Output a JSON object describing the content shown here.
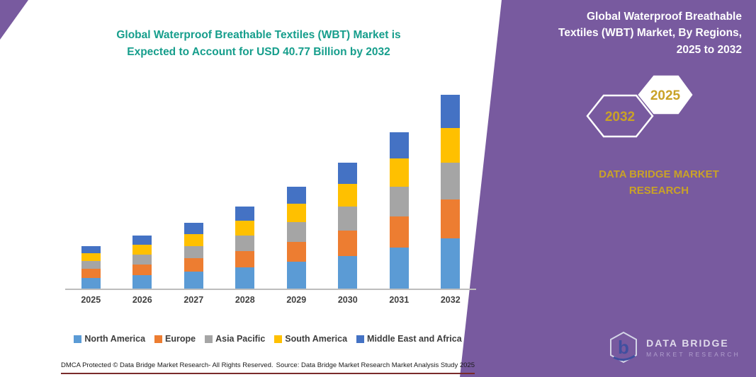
{
  "title": {
    "line1": "Global Waterproof Breathable Textiles (WBT) Market is",
    "line2": "Expected to Account for USD 40.77 Billion by 2032"
  },
  "right_panel": {
    "heading_line1": "Global Waterproof Breathable",
    "heading_line2": "Textiles (WBT) Market, By Regions,",
    "heading_line3": "2025 to 2032",
    "hexagon_left_year": "2032",
    "hexagon_right_year": "2025",
    "brand_line1": "DATA BRIDGE MARKET",
    "brand_line2": "RESEARCH",
    "logo_letter": "b",
    "logo_text1": "DATA BRIDGE",
    "logo_text2": "MARKET RESEARCH",
    "colors": {
      "panel": "#785a9f",
      "gold": "#c9a227"
    }
  },
  "footer": {
    "dmca": "DMCA Protected © Data Bridge Market Research-  All Rights Reserved.",
    "source": "Source: Data Bridge Market Research  Market Analysis Study 2025"
  },
  "chart_data": {
    "type": "bar",
    "stacked": true,
    "title": "Global Waterproof Breathable Textiles (WBT) Market is Expected to Account for USD 40.77 Billion by 2032",
    "unit": "USD Billion",
    "categories": [
      "2025",
      "2026",
      "2027",
      "2028",
      "2029",
      "2030",
      "2031",
      "2032"
    ],
    "series": [
      {
        "name": "North America",
        "color": "#5B9BD5",
        "values": [
          2.3,
          2.9,
          3.6,
          4.5,
          5.6,
          6.9,
          8.6,
          10.6
        ]
      },
      {
        "name": "Europe",
        "color": "#ED7D31",
        "values": [
          1.8,
          2.2,
          2.8,
          3.4,
          4.3,
          5.3,
          6.6,
          8.2
        ]
      },
      {
        "name": "Asia Pacific",
        "color": "#A5A5A5",
        "values": [
          1.7,
          2.1,
          2.6,
          3.3,
          4.1,
          5.0,
          6.2,
          7.75
        ]
      },
      {
        "name": "South America",
        "color": "#FFC000",
        "values": [
          1.6,
          2.0,
          2.5,
          3.1,
          3.9,
          4.8,
          5.9,
          7.3
        ]
      },
      {
        "name": "Middle East and Africa",
        "color": "#4472C4",
        "values": [
          1.5,
          1.9,
          2.4,
          2.9,
          3.6,
          4.5,
          5.6,
          6.92
        ]
      }
    ],
    "ylim": [
      0,
      42
    ],
    "grid": false,
    "legend_position": "bottom",
    "total_2032": 40.77
  }
}
